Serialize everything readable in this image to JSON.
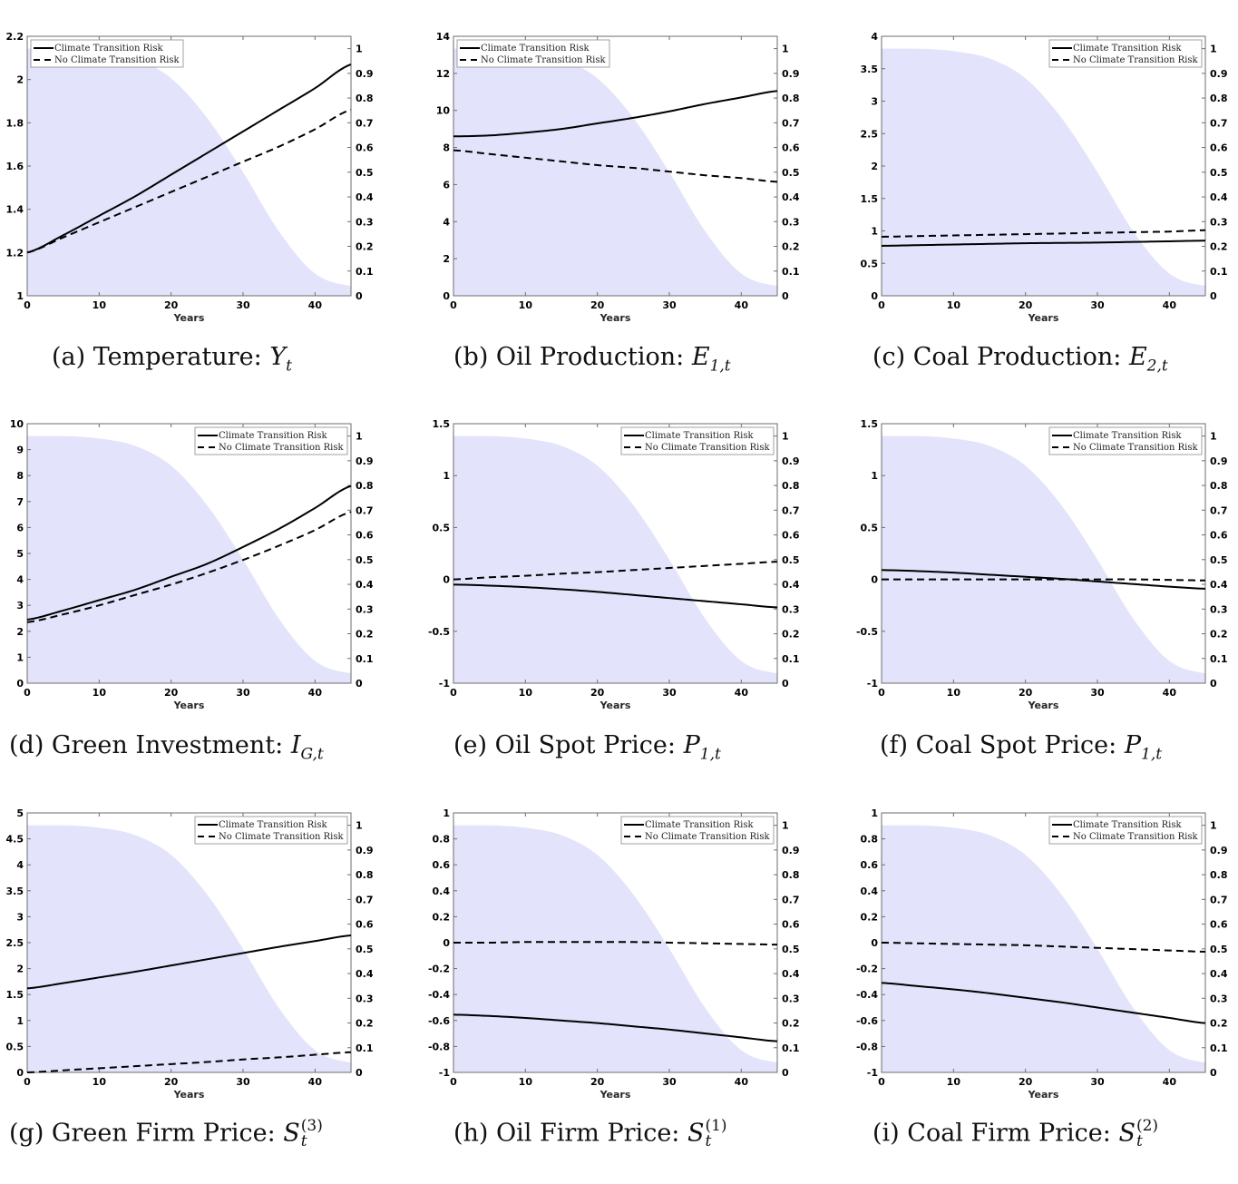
{
  "legend": {
    "climate_label": "Climate Transition Risk",
    "no_climate_label": "No Climate Transition Risk"
  },
  "colors": {
    "shade": "#e3e3fb",
    "line": "#000000",
    "axis": "#6e6e6e"
  },
  "chart_data": [
    {
      "id": "a",
      "type": "line",
      "caption_prefix": "(a) Temperature: ",
      "caption_var": "Y",
      "caption_sub": "t",
      "caption_sup": "",
      "xlabel": "Years",
      "xlim": [
        0,
        45
      ],
      "xticks": [
        0,
        10,
        20,
        30,
        40
      ],
      "ylim": [
        1,
        2.2
      ],
      "yticks": [
        1,
        1.2,
        1.4,
        1.6,
        1.8,
        2,
        2.2
      ],
      "ylim_right": [
        0,
        1.05
      ],
      "yticks_right": [
        0,
        0.1,
        0.2,
        0.3,
        0.4,
        0.5,
        0.6,
        0.7,
        0.8,
        0.9,
        1
      ],
      "legend_position": "top-left",
      "x": [
        0,
        5,
        10,
        15,
        20,
        25,
        30,
        35,
        40,
        45
      ],
      "series": [
        {
          "name": "Climate Transition Risk",
          "style": "solid",
          "values": [
            1.2,
            1.28,
            1.37,
            1.46,
            1.56,
            1.66,
            1.76,
            1.86,
            1.96,
            2.07
          ]
        },
        {
          "name": "No Climate Transition Risk",
          "style": "dashed",
          "values": [
            1.2,
            1.27,
            1.34,
            1.41,
            1.48,
            1.55,
            1.62,
            1.69,
            1.77,
            1.86
          ]
        }
      ],
      "shaded_probability": {
        "x": [
          0,
          5,
          10,
          15,
          20,
          25,
          30,
          35,
          40,
          45
        ],
        "values": [
          1.0,
          1.0,
          0.99,
          0.96,
          0.88,
          0.72,
          0.5,
          0.26,
          0.09,
          0.04
        ]
      }
    },
    {
      "id": "b",
      "type": "line",
      "caption_prefix": "(b) Oil Production: ",
      "caption_var": "E",
      "caption_sub": "1,t",
      "caption_sup": "",
      "xlabel": "Years",
      "xlim": [
        0,
        45
      ],
      "xticks": [
        0,
        10,
        20,
        30,
        40
      ],
      "ylim": [
        0,
        14
      ],
      "yticks": [
        0,
        2,
        4,
        6,
        8,
        10,
        12,
        14
      ],
      "ylim_right": [
        0,
        1.05
      ],
      "yticks_right": [
        0,
        0.1,
        0.2,
        0.3,
        0.4,
        0.5,
        0.6,
        0.7,
        0.8,
        0.9,
        1
      ],
      "legend_position": "top-left",
      "x": [
        0,
        5,
        10,
        15,
        20,
        25,
        30,
        35,
        40,
        45
      ],
      "series": [
        {
          "name": "Climate Transition Risk",
          "style": "solid",
          "values": [
            8.6,
            8.65,
            8.8,
            9.0,
            9.3,
            9.6,
            9.95,
            10.35,
            10.7,
            11.05
          ]
        },
        {
          "name": "No Climate Transition Risk",
          "style": "dashed",
          "values": [
            7.85,
            7.65,
            7.45,
            7.25,
            7.05,
            6.9,
            6.7,
            6.5,
            6.35,
            6.15
          ]
        }
      ],
      "shaded_probability": {
        "x": [
          0,
          5,
          10,
          15,
          20,
          25,
          30,
          35,
          40,
          45
        ],
        "values": [
          1.0,
          1.0,
          0.99,
          0.96,
          0.88,
          0.72,
          0.5,
          0.26,
          0.09,
          0.04
        ]
      }
    },
    {
      "id": "c",
      "type": "line",
      "caption_prefix": "(c) Coal Production: ",
      "caption_var": "E",
      "caption_sub": "2,t",
      "caption_sup": "",
      "xlabel": "Years",
      "xlim": [
        0,
        45
      ],
      "xticks": [
        0,
        10,
        20,
        30,
        40
      ],
      "ylim": [
        0,
        4
      ],
      "yticks": [
        0,
        0.5,
        1,
        1.5,
        2,
        2.5,
        3,
        3.5,
        4
      ],
      "ylim_right": [
        0,
        1.05
      ],
      "yticks_right": [
        0,
        0.1,
        0.2,
        0.3,
        0.4,
        0.5,
        0.6,
        0.7,
        0.8,
        0.9,
        1
      ],
      "legend_position": "top-right",
      "x": [
        0,
        5,
        10,
        15,
        20,
        25,
        30,
        35,
        40,
        45
      ],
      "series": [
        {
          "name": "Climate Transition Risk",
          "style": "solid",
          "values": [
            0.77,
            0.78,
            0.79,
            0.8,
            0.81,
            0.815,
            0.82,
            0.83,
            0.84,
            0.85
          ]
        },
        {
          "name": "No Climate Transition Risk",
          "style": "dashed",
          "values": [
            0.91,
            0.92,
            0.93,
            0.94,
            0.95,
            0.96,
            0.97,
            0.98,
            0.99,
            1.01
          ]
        }
      ],
      "shaded_probability": {
        "x": [
          0,
          5,
          10,
          15,
          20,
          25,
          30,
          35,
          40,
          45
        ],
        "values": [
          1.0,
          1.0,
          0.99,
          0.96,
          0.88,
          0.72,
          0.5,
          0.26,
          0.09,
          0.04
        ]
      }
    },
    {
      "id": "d",
      "type": "line",
      "caption_prefix": "(d) Green Investment: ",
      "caption_var": "I",
      "caption_sub": "G,t",
      "caption_sup": "",
      "xlabel": "Years",
      "xlim": [
        0,
        45
      ],
      "xticks": [
        0,
        10,
        20,
        30,
        40
      ],
      "ylim": [
        0,
        10
      ],
      "yticks": [
        0,
        1,
        2,
        3,
        4,
        5,
        6,
        7,
        8,
        9,
        10
      ],
      "ylim_right": [
        0,
        1.05
      ],
      "yticks_right": [
        0,
        0.1,
        0.2,
        0.3,
        0.4,
        0.5,
        0.6,
        0.7,
        0.8,
        0.9,
        1
      ],
      "legend_position": "top-right",
      "x": [
        0,
        5,
        10,
        15,
        20,
        25,
        30,
        35,
        40,
        45
      ],
      "series": [
        {
          "name": "Climate Transition Risk",
          "style": "solid",
          "values": [
            2.45,
            2.8,
            3.2,
            3.6,
            4.1,
            4.6,
            5.25,
            5.95,
            6.75,
            7.6
          ]
        },
        {
          "name": "No Climate Transition Risk",
          "style": "dashed",
          "values": [
            2.35,
            2.65,
            3.0,
            3.4,
            3.8,
            4.25,
            4.75,
            5.3,
            5.9,
            6.6
          ]
        }
      ],
      "shaded_probability": {
        "x": [
          0,
          5,
          10,
          15,
          20,
          25,
          30,
          35,
          40,
          45
        ],
        "values": [
          1.0,
          1.0,
          0.99,
          0.96,
          0.88,
          0.72,
          0.5,
          0.26,
          0.09,
          0.04
        ]
      }
    },
    {
      "id": "e",
      "type": "line",
      "caption_prefix": "(e) Oil Spot Price: ",
      "caption_var": "P",
      "caption_sub": "1,t",
      "caption_sup": "",
      "xlabel": "Years",
      "xlim": [
        0,
        45
      ],
      "xticks": [
        0,
        10,
        20,
        30,
        40
      ],
      "ylim": [
        -1,
        1.5
      ],
      "yticks": [
        -1,
        -0.5,
        0,
        0.5,
        1,
        1.5
      ],
      "ylim_right": [
        0,
        1.05
      ],
      "yticks_right": [
        0,
        0.1,
        0.2,
        0.3,
        0.4,
        0.5,
        0.6,
        0.7,
        0.8,
        0.9,
        1
      ],
      "legend_position": "top-right",
      "x": [
        0,
        5,
        10,
        15,
        20,
        25,
        30,
        35,
        40,
        45
      ],
      "series": [
        {
          "name": "Climate Transition Risk",
          "style": "solid",
          "values": [
            -0.05,
            -0.06,
            -0.075,
            -0.095,
            -0.12,
            -0.15,
            -0.18,
            -0.21,
            -0.24,
            -0.27
          ]
        },
        {
          "name": "No Climate Transition Risk",
          "style": "dashed",
          "values": [
            0.0,
            0.02,
            0.035,
            0.055,
            0.07,
            0.09,
            0.11,
            0.13,
            0.15,
            0.17
          ]
        }
      ],
      "shaded_probability": {
        "x": [
          0,
          5,
          10,
          15,
          20,
          25,
          30,
          35,
          40,
          45
        ],
        "values": [
          1.0,
          1.0,
          0.99,
          0.96,
          0.88,
          0.72,
          0.5,
          0.26,
          0.09,
          0.04
        ]
      }
    },
    {
      "id": "f",
      "type": "line",
      "caption_prefix": "(f) Coal Spot Price: ",
      "caption_var": "P",
      "caption_sub": "1,t",
      "caption_sup": "",
      "xlabel": "Years",
      "xlim": [
        0,
        45
      ],
      "xticks": [
        0,
        10,
        20,
        30,
        40
      ],
      "ylim": [
        -1,
        1.5
      ],
      "yticks": [
        -1,
        -0.5,
        0,
        0.5,
        1,
        1.5
      ],
      "ylim_right": [
        0,
        1.05
      ],
      "yticks_right": [
        0,
        0.1,
        0.2,
        0.3,
        0.4,
        0.5,
        0.6,
        0.7,
        0.8,
        0.9,
        1
      ],
      "legend_position": "top-right",
      "x": [
        0,
        5,
        10,
        15,
        20,
        25,
        30,
        35,
        40,
        45
      ],
      "series": [
        {
          "name": "Climate Transition Risk",
          "style": "solid",
          "values": [
            0.09,
            0.08,
            0.065,
            0.045,
            0.025,
            0.005,
            -0.02,
            -0.045,
            -0.07,
            -0.09
          ]
        },
        {
          "name": "No Climate Transition Risk",
          "style": "dashed",
          "values": [
            0.0,
            0.0,
            0.0,
            0.0,
            0.0,
            0.0,
            0.0,
            0.0,
            -0.005,
            -0.01
          ]
        }
      ],
      "shaded_probability": {
        "x": [
          0,
          5,
          10,
          15,
          20,
          25,
          30,
          35,
          40,
          45
        ],
        "values": [
          1.0,
          1.0,
          0.99,
          0.96,
          0.88,
          0.72,
          0.5,
          0.26,
          0.09,
          0.04
        ]
      }
    },
    {
      "id": "g",
      "type": "line",
      "caption_prefix": "(g) Green Firm Price: ",
      "caption_var": "S",
      "caption_sub": "t",
      "caption_sup": "(3)",
      "xlabel": "Years",
      "xlim": [
        0,
        45
      ],
      "xticks": [
        0,
        10,
        20,
        30,
        40
      ],
      "ylim": [
        0,
        5
      ],
      "yticks": [
        0,
        0.5,
        1,
        1.5,
        2,
        2.5,
        3,
        3.5,
        4,
        4.5,
        5
      ],
      "ylim_right": [
        0,
        1.05
      ],
      "yticks_right": [
        0,
        0.1,
        0.2,
        0.3,
        0.4,
        0.5,
        0.6,
        0.7,
        0.8,
        0.9,
        1
      ],
      "legend_position": "top-right",
      "x": [
        0,
        5,
        10,
        15,
        20,
        25,
        30,
        35,
        40,
        45
      ],
      "series": [
        {
          "name": "Climate Transition Risk",
          "style": "solid",
          "values": [
            1.62,
            1.72,
            1.83,
            1.94,
            2.06,
            2.18,
            2.3,
            2.42,
            2.53,
            2.64
          ]
        },
        {
          "name": "No Climate Transition Risk",
          "style": "dashed",
          "values": [
            0.0,
            0.04,
            0.08,
            0.12,
            0.16,
            0.2,
            0.25,
            0.29,
            0.34,
            0.39
          ]
        }
      ],
      "shaded_probability": {
        "x": [
          0,
          5,
          10,
          15,
          20,
          25,
          30,
          35,
          40,
          45
        ],
        "values": [
          1.0,
          1.0,
          0.99,
          0.96,
          0.88,
          0.72,
          0.5,
          0.26,
          0.09,
          0.04
        ]
      }
    },
    {
      "id": "h",
      "type": "line",
      "caption_prefix": "(h) Oil Firm Price: ",
      "caption_var": "S",
      "caption_sub": "t",
      "caption_sup": "(1)",
      "xlabel": "Years",
      "xlim": [
        0,
        45
      ],
      "xticks": [
        0,
        10,
        20,
        30,
        40
      ],
      "ylim": [
        -1,
        1
      ],
      "yticks": [
        -1,
        -0.8,
        -0.6,
        -0.4,
        -0.2,
        0,
        0.2,
        0.4,
        0.6,
        0.8,
        1
      ],
      "ylim_right": [
        0,
        1.05
      ],
      "yticks_right": [
        0,
        0.1,
        0.2,
        0.3,
        0.4,
        0.5,
        0.6,
        0.7,
        0.8,
        0.9,
        1
      ],
      "legend_position": "top-right",
      "x": [
        0,
        5,
        10,
        15,
        20,
        25,
        30,
        35,
        40,
        45
      ],
      "series": [
        {
          "name": "Climate Transition Risk",
          "style": "solid",
          "values": [
            -0.555,
            -0.565,
            -0.58,
            -0.6,
            -0.62,
            -0.645,
            -0.67,
            -0.7,
            -0.73,
            -0.76
          ]
        },
        {
          "name": "No Climate Transition Risk",
          "style": "dashed",
          "values": [
            0.0,
            0.0,
            0.005,
            0.005,
            0.005,
            0.005,
            0.0,
            -0.005,
            -0.01,
            -0.015
          ]
        }
      ],
      "shaded_probability": {
        "x": [
          0,
          5,
          10,
          15,
          20,
          25,
          30,
          35,
          40,
          45
        ],
        "values": [
          1.0,
          1.0,
          0.99,
          0.96,
          0.88,
          0.72,
          0.5,
          0.26,
          0.09,
          0.04
        ]
      }
    },
    {
      "id": "i",
      "type": "line",
      "caption_prefix": "(i) Coal Firm Price: ",
      "caption_var": "S",
      "caption_sub": "t",
      "caption_sup": "(2)",
      "xlabel": "Years",
      "xlim": [
        0,
        45
      ],
      "xticks": [
        0,
        10,
        20,
        30,
        40
      ],
      "ylim": [
        -1,
        1
      ],
      "yticks": [
        -1,
        -0.8,
        -0.6,
        -0.4,
        -0.2,
        0,
        0.2,
        0.4,
        0.6,
        0.8,
        1
      ],
      "ylim_right": [
        0,
        1.05
      ],
      "yticks_right": [
        0,
        0.1,
        0.2,
        0.3,
        0.4,
        0.5,
        0.6,
        0.7,
        0.8,
        0.9,
        1
      ],
      "legend_position": "top-right",
      "x": [
        0,
        5,
        10,
        15,
        20,
        25,
        30,
        35,
        40,
        45
      ],
      "series": [
        {
          "name": "Climate Transition Risk",
          "style": "solid",
          "values": [
            -0.31,
            -0.335,
            -0.36,
            -0.39,
            -0.425,
            -0.46,
            -0.5,
            -0.54,
            -0.58,
            -0.62
          ]
        },
        {
          "name": "No Climate Transition Risk",
          "style": "dashed",
          "values": [
            0.0,
            -0.005,
            -0.01,
            -0.015,
            -0.02,
            -0.03,
            -0.04,
            -0.05,
            -0.06,
            -0.07
          ]
        }
      ],
      "shaded_probability": {
        "x": [
          0,
          5,
          10,
          15,
          20,
          25,
          30,
          35,
          40,
          45
        ],
        "values": [
          1.0,
          1.0,
          0.99,
          0.96,
          0.88,
          0.72,
          0.5,
          0.26,
          0.09,
          0.04
        ]
      }
    }
  ]
}
